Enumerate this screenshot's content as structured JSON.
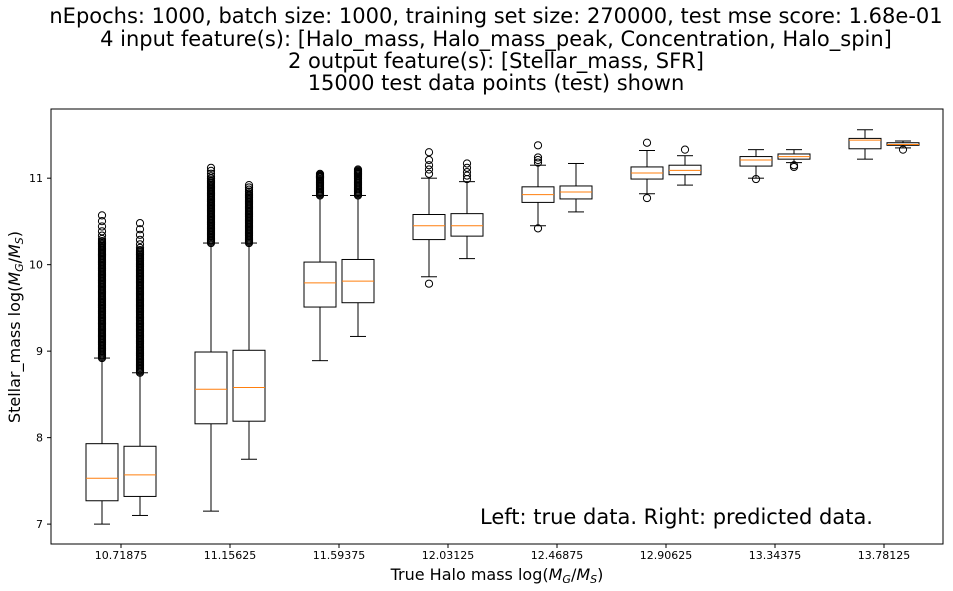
{
  "chart_data": {
    "type": "box",
    "title_lines": [
      "nEpochs: 1000, batch size: 1000, training set size: 270000, test mse score: 1.68e-01",
      "4 input feature(s): [Halo_mass, Halo_mass_peak, Concentration, Halo_spin]",
      "2 output feature(s): [Stellar_mass, SFR]",
      "15000 test data points (test) shown"
    ],
    "xlabel_prefix": "True Halo mass log(",
    "ylabel_prefix": "Stellar_mass log(",
    "axis_mass_g": "M",
    "axis_sub_g": "G",
    "axis_slash": "/",
    "axis_mass_s": "M",
    "axis_sub_s": "S",
    "axis_close": ")",
    "annotation": "Left: true data. Right: predicted data.",
    "categories": [
      "10.71875",
      "11.15625",
      "11.59375",
      "12.03125",
      "12.46875",
      "12.90625",
      "13.34375",
      "13.78125"
    ],
    "yticks": [
      7,
      8,
      9,
      10,
      11
    ],
    "ytick_labels": [
      "7",
      "8",
      "9",
      "10",
      "11"
    ],
    "ylim": [
      6.77,
      11.8
    ],
    "grid": false,
    "series": [
      {
        "boxes": [
          {
            "whislo": 7.0,
            "q1": 7.27,
            "med": 7.53,
            "q3": 7.93,
            "whishi": 8.92,
            "fliers_lo": 8.92,
            "fliers_hi": 10.57,
            "fliers_dense": true
          },
          {
            "whislo": 7.15,
            "q1": 8.16,
            "med": 8.56,
            "q3": 8.99,
            "whishi": 10.25,
            "fliers_lo": 10.25,
            "fliers_hi": 11.12,
            "fliers_dense": true
          },
          {
            "whislo": 8.89,
            "q1": 9.51,
            "med": 9.79,
            "q3": 10.03,
            "whishi": 10.8,
            "fliers_lo": 10.8,
            "fliers_hi": 11.05,
            "fliers_dense": true
          },
          {
            "whislo": 9.86,
            "q1": 10.29,
            "med": 10.45,
            "q3": 10.58,
            "whishi": 11.0,
            "fliers_extra": [
              9.78,
              11.05,
              11.1,
              11.15,
              11.21,
              11.3
            ]
          },
          {
            "whislo": 10.45,
            "q1": 10.72,
            "med": 10.81,
            "q3": 10.9,
            "whishi": 11.15,
            "fliers_extra": [
              10.42,
              11.18,
              11.21,
              11.24,
              11.38
            ]
          },
          {
            "whislo": 10.82,
            "q1": 10.99,
            "med": 11.06,
            "q3": 11.13,
            "whishi": 11.32,
            "fliers_extra": [
              10.77,
              11.41
            ]
          },
          {
            "whislo": 11.0,
            "q1": 11.14,
            "med": 11.21,
            "q3": 11.25,
            "whishi": 11.33,
            "fliers_extra": [
              10.99
            ]
          },
          {
            "whislo": 11.22,
            "q1": 11.34,
            "med": 11.44,
            "q3": 11.46,
            "whishi": 11.56,
            "fliers_extra": []
          }
        ]
      },
      {
        "boxes": [
          {
            "whislo": 7.1,
            "q1": 7.32,
            "med": 7.57,
            "q3": 7.9,
            "whishi": 8.75,
            "fliers_lo": 8.75,
            "fliers_hi": 10.48,
            "fliers_dense": true
          },
          {
            "whislo": 7.75,
            "q1": 8.19,
            "med": 8.58,
            "q3": 9.01,
            "whishi": 10.25,
            "fliers_lo": 10.25,
            "fliers_hi": 10.92,
            "fliers_dense": true
          },
          {
            "whislo": 9.17,
            "q1": 9.56,
            "med": 9.81,
            "q3": 10.06,
            "whishi": 10.8,
            "fliers_lo": 10.8,
            "fliers_hi": 11.1,
            "fliers_dense": true
          },
          {
            "whislo": 10.07,
            "q1": 10.33,
            "med": 10.45,
            "q3": 10.59,
            "whishi": 10.96,
            "fliers_extra": [
              10.99,
              11.03,
              11.07,
              11.12,
              11.17
            ]
          },
          {
            "whislo": 10.61,
            "q1": 10.76,
            "med": 10.84,
            "q3": 10.91,
            "whishi": 11.17,
            "fliers_extra": []
          },
          {
            "whislo": 10.92,
            "q1": 11.04,
            "med": 11.09,
            "q3": 11.15,
            "whishi": 11.26,
            "fliers_extra": [
              11.33
            ]
          },
          {
            "whislo": 11.18,
            "q1": 11.22,
            "med": 11.25,
            "q3": 11.28,
            "whishi": 11.33,
            "fliers_extra": [
              11.13,
              11.15
            ]
          },
          {
            "whislo": 11.35,
            "q1": 11.38,
            "med": 11.39,
            "q3": 11.41,
            "whishi": 11.43,
            "fliers_extra": [
              11.33
            ]
          }
        ]
      }
    ],
    "colors": {
      "box": "#000000",
      "median": "#ff7f0e",
      "background": "#ffffff"
    }
  }
}
